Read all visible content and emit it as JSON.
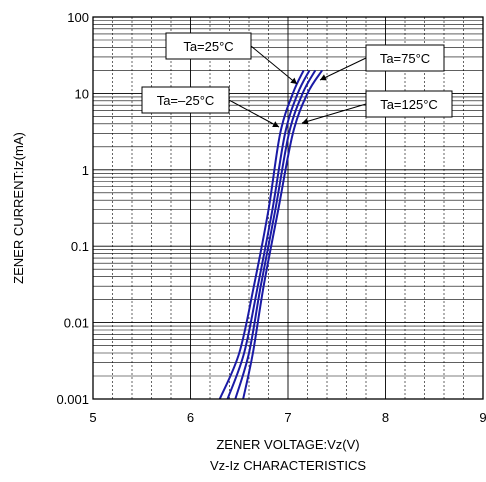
{
  "chart_data": {
    "type": "line",
    "title": "",
    "xlabel": "ZENER VOLTAGE:Vz(V)",
    "ylabel": "ZENER CURRENT:Iz(mA)",
    "caption": "Vz-Iz CHARACTERISTICS",
    "xlim": [
      5,
      9
    ],
    "ylim": [
      0.001,
      100
    ],
    "yscale": "log",
    "grid": true,
    "x_ticks": [
      "5",
      "6",
      "7",
      "8",
      "9"
    ],
    "y_ticks": [
      "0.001",
      "0.01",
      "0.1",
      "1",
      "10",
      "100"
    ],
    "series_color": "#1a1aa6",
    "series": [
      {
        "name": "Ta=–25°C",
        "points": [
          [
            6.3,
            0.001
          ],
          [
            6.5,
            0.004
          ],
          [
            6.65,
            0.03
          ],
          [
            6.8,
            0.3
          ],
          [
            6.92,
            3
          ],
          [
            7.05,
            10
          ],
          [
            7.16,
            20
          ]
        ]
      },
      {
        "name": "Ta=25°C",
        "points": [
          [
            6.38,
            0.001
          ],
          [
            6.55,
            0.004
          ],
          [
            6.69,
            0.03
          ],
          [
            6.84,
            0.3
          ],
          [
            6.97,
            3
          ],
          [
            7.1,
            10
          ],
          [
            7.22,
            20
          ]
        ]
      },
      {
        "name": "Ta=75°C",
        "points": [
          [
            6.46,
            0.001
          ],
          [
            6.6,
            0.004
          ],
          [
            6.72,
            0.03
          ],
          [
            6.87,
            0.3
          ],
          [
            7.01,
            3
          ],
          [
            7.15,
            10
          ],
          [
            7.28,
            20
          ]
        ]
      },
      {
        "name": "Ta=125°C",
        "points": [
          [
            6.54,
            0.001
          ],
          [
            6.64,
            0.004
          ],
          [
            6.75,
            0.03
          ],
          [
            6.9,
            0.3
          ],
          [
            7.05,
            3
          ],
          [
            7.2,
            10
          ],
          [
            7.35,
            20
          ]
        ]
      }
    ],
    "annotations": [
      {
        "text": "Ta=25°C"
      },
      {
        "text": "Ta=75°C"
      },
      {
        "text": "Ta=–25°C"
      },
      {
        "text": "Ta=125°C"
      }
    ]
  }
}
